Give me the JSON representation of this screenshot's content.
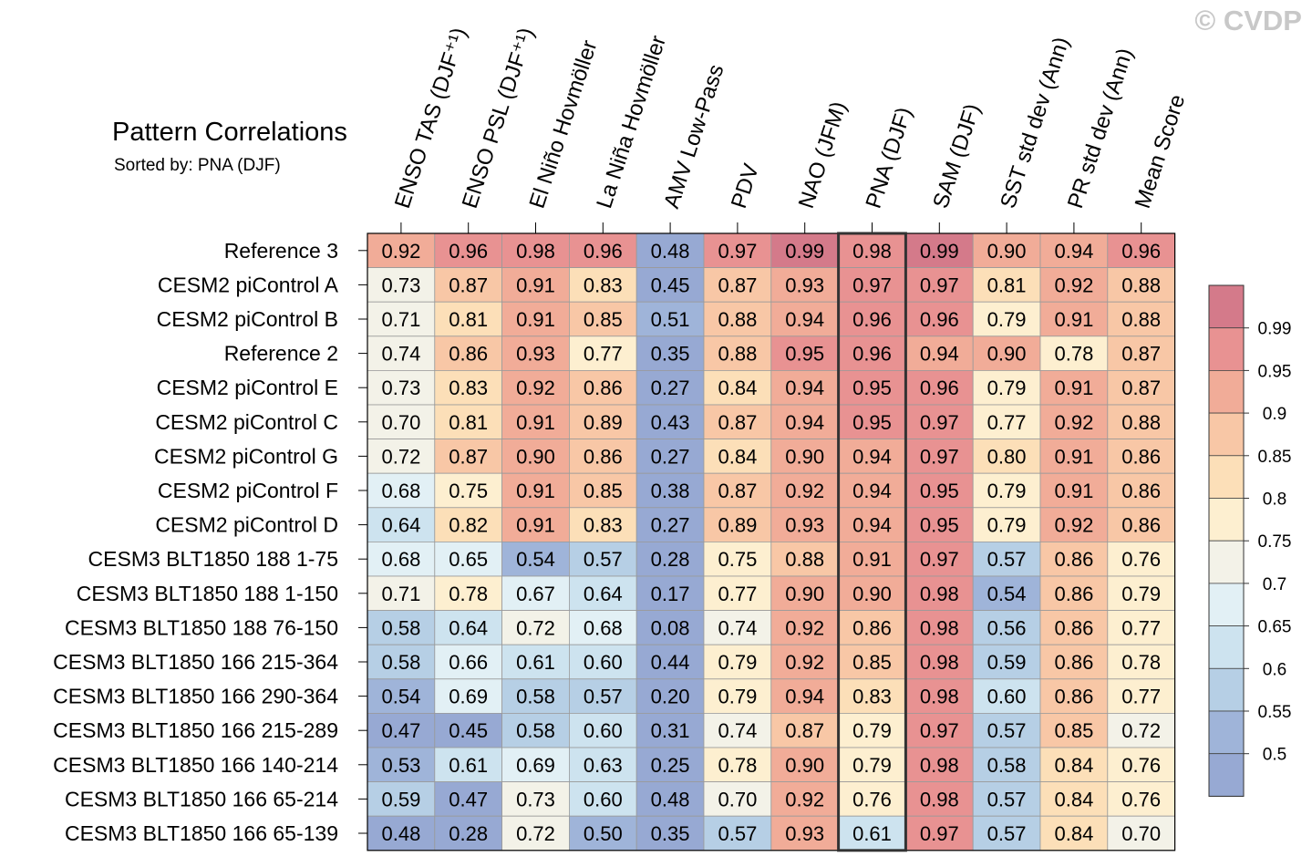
{
  "watermark": "© CVDP",
  "chart_data": {
    "type": "heatmap",
    "title": "Pattern Correlations",
    "subtitle": "Sorted by: PNA (DJF)",
    "highlight_column": "PNA (DJF)",
    "columns": [
      "ENSO TAS (DJF⁺¹)",
      "ENSO PSL (DJF⁺¹)",
      "El Niño Hovmöller",
      "La Niña Hovmöller",
      "AMV Low-Pass",
      "PDV",
      "NAO (JFM)",
      "PNA (DJF)",
      "SAM (DJF)",
      "SST std dev (Ann)",
      "PR std dev (Ann)",
      "Mean Score"
    ],
    "rows": [
      "Reference 3",
      "CESM2 piControl A",
      "CESM2 piControl B",
      "Reference 2",
      "CESM2 piControl E",
      "CESM2 piControl C",
      "CESM2 piControl G",
      "CESM2 piControl F",
      "CESM2 piControl D",
      "CESM3 BLT1850 188 1-75",
      "CESM3 BLT1850 188 1-150",
      "CESM3 BLT1850 188 76-150",
      "CESM3 BLT1850 166 215-364",
      "CESM3 BLT1850 166 290-364",
      "CESM3 BLT1850 166 215-289",
      "CESM3 BLT1850 166 140-214",
      "CESM3 BLT1850 166 65-214",
      "CESM3 BLT1850 166 65-139"
    ],
    "values": [
      [
        "0.92",
        "0.96",
        "0.98",
        "0.96",
        "0.48",
        "0.97",
        "0.99",
        "0.98",
        "0.99",
        "0.90",
        "0.94",
        "0.96"
      ],
      [
        "0.73",
        "0.87",
        "0.91",
        "0.83",
        "0.45",
        "0.87",
        "0.93",
        "0.97",
        "0.97",
        "0.81",
        "0.92",
        "0.88"
      ],
      [
        "0.71",
        "0.81",
        "0.91",
        "0.85",
        "0.51",
        "0.88",
        "0.94",
        "0.96",
        "0.96",
        "0.79",
        "0.91",
        "0.88"
      ],
      [
        "0.74",
        "0.86",
        "0.93",
        "0.77",
        "0.35",
        "0.88",
        "0.95",
        "0.96",
        "0.94",
        "0.90",
        "0.78",
        "0.87"
      ],
      [
        "0.73",
        "0.83",
        "0.92",
        "0.86",
        "0.27",
        "0.84",
        "0.94",
        "0.95",
        "0.96",
        "0.79",
        "0.91",
        "0.87"
      ],
      [
        "0.70",
        "0.81",
        "0.91",
        "0.89",
        "0.43",
        "0.87",
        "0.94",
        "0.95",
        "0.97",
        "0.77",
        "0.92",
        "0.88"
      ],
      [
        "0.72",
        "0.87",
        "0.90",
        "0.86",
        "0.27",
        "0.84",
        "0.90",
        "0.94",
        "0.97",
        "0.80",
        "0.91",
        "0.86"
      ],
      [
        "0.68",
        "0.75",
        "0.91",
        "0.85",
        "0.38",
        "0.87",
        "0.92",
        "0.94",
        "0.95",
        "0.79",
        "0.91",
        "0.86"
      ],
      [
        "0.64",
        "0.82",
        "0.91",
        "0.83",
        "0.27",
        "0.89",
        "0.93",
        "0.94",
        "0.95",
        "0.79",
        "0.92",
        "0.86"
      ],
      [
        "0.68",
        "0.65",
        "0.54",
        "0.57",
        "0.28",
        "0.75",
        "0.88",
        "0.91",
        "0.97",
        "0.57",
        "0.86",
        "0.76"
      ],
      [
        "0.71",
        "0.78",
        "0.67",
        "0.64",
        "0.17",
        "0.77",
        "0.90",
        "0.90",
        "0.98",
        "0.54",
        "0.86",
        "0.79"
      ],
      [
        "0.58",
        "0.64",
        "0.72",
        "0.68",
        "0.08",
        "0.74",
        "0.92",
        "0.86",
        "0.98",
        "0.56",
        "0.86",
        "0.77"
      ],
      [
        "0.58",
        "0.66",
        "0.61",
        "0.60",
        "0.44",
        "0.79",
        "0.92",
        "0.85",
        "0.98",
        "0.59",
        "0.86",
        "0.78"
      ],
      [
        "0.54",
        "0.69",
        "0.58",
        "0.57",
        "0.20",
        "0.79",
        "0.94",
        "0.83",
        "0.98",
        "0.60",
        "0.86",
        "0.77"
      ],
      [
        "0.47",
        "0.45",
        "0.58",
        "0.60",
        "0.31",
        "0.74",
        "0.87",
        "0.79",
        "0.97",
        "0.57",
        "0.85",
        "0.72"
      ],
      [
        "0.53",
        "0.61",
        "0.69",
        "0.63",
        "0.25",
        "0.78",
        "0.90",
        "0.79",
        "0.98",
        "0.58",
        "0.84",
        "0.76"
      ],
      [
        "0.59",
        "0.47",
        "0.73",
        "0.60",
        "0.48",
        "0.70",
        "0.92",
        "0.76",
        "0.98",
        "0.57",
        "0.84",
        "0.76"
      ],
      [
        "0.48",
        "0.28",
        "0.72",
        "0.50",
        "0.35",
        "0.57",
        "0.93",
        "0.61",
        "0.97",
        "0.57",
        "0.84",
        "0.70"
      ]
    ],
    "colorbar": {
      "ticks": [
        "0.99",
        "0.95",
        "0.9",
        "0.85",
        "0.8",
        "0.75",
        "0.7",
        "0.65",
        "0.6",
        "0.55",
        "0.5"
      ],
      "boundaries": [
        0.99,
        0.95,
        0.9,
        0.85,
        0.8,
        0.75,
        0.7,
        0.65,
        0.6,
        0.55,
        0.5
      ],
      "colors": [
        "#d47a8a",
        "#e89292",
        "#f1ac98",
        "#f8c7a6",
        "#fcdfb8",
        "#fdefd0",
        "#f3f2e8",
        "#e2f0f5",
        "#cde3ef",
        "#b6cfe5",
        "#9fb4d9",
        "#97a9d3"
      ]
    }
  }
}
